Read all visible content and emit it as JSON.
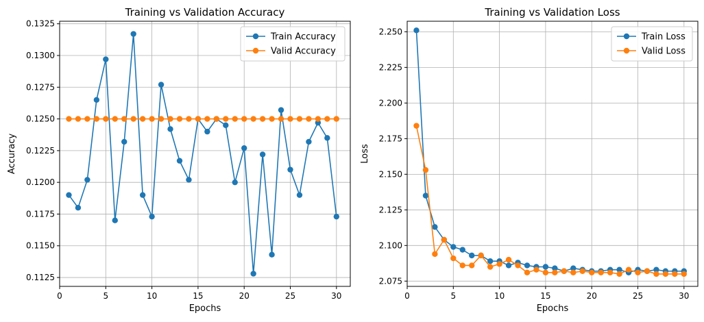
{
  "chart_data": [
    {
      "type": "line",
      "title": "Training vs Validation Accuracy",
      "xlabel": "Epochs",
      "ylabel": "Accuracy",
      "xlim": [
        0,
        31.5
      ],
      "ylim": [
        0.1118,
        0.1327
      ],
      "xticks": [
        0,
        5,
        10,
        15,
        20,
        25,
        30
      ],
      "yticks": [
        0.1125,
        0.115,
        0.1175,
        0.12,
        0.1225,
        0.125,
        0.1275,
        0.13,
        0.1325
      ],
      "ytick_labels": [
        "0.1125",
        "0.1150",
        "0.1175",
        "0.1200",
        "0.1225",
        "0.1250",
        "0.1275",
        "0.1300",
        "0.1325"
      ],
      "grid": true,
      "legend": "upper-right",
      "x": [
        1,
        2,
        3,
        4,
        5,
        6,
        7,
        8,
        9,
        10,
        11,
        12,
        13,
        14,
        15,
        16,
        17,
        18,
        19,
        20,
        21,
        22,
        23,
        24,
        25,
        26,
        27,
        28,
        29,
        30
      ],
      "series": [
        {
          "name": "Train Accuracy",
          "color": "#1f77b4",
          "values": [
            0.119,
            0.118,
            0.1202,
            0.1265,
            0.1297,
            0.117,
            0.1232,
            0.1317,
            0.119,
            0.1173,
            0.1277,
            0.1242,
            0.1217,
            0.1202,
            0.125,
            0.124,
            0.125,
            0.1245,
            0.12,
            0.1227,
            0.1128,
            0.1222,
            0.1143,
            0.1257,
            0.121,
            0.119,
            0.1232,
            0.1247,
            0.1235,
            0.1173
          ]
        },
        {
          "name": "Valid Accuracy",
          "color": "#ff7f0e",
          "values": [
            0.125,
            0.125,
            0.125,
            0.125,
            0.125,
            0.125,
            0.125,
            0.125,
            0.125,
            0.125,
            0.125,
            0.125,
            0.125,
            0.125,
            0.125,
            0.125,
            0.125,
            0.125,
            0.125,
            0.125,
            0.125,
            0.125,
            0.125,
            0.125,
            0.125,
            0.125,
            0.125,
            0.125,
            0.125,
            0.125
          ]
        }
      ]
    },
    {
      "type": "line",
      "title": "Training vs Validation Loss",
      "xlabel": "Epochs",
      "ylabel": "Loss",
      "xlim": [
        0,
        31.5
      ],
      "ylim": [
        2.0713,
        2.2574
      ],
      "xticks": [
        0,
        5,
        10,
        15,
        20,
        25,
        30
      ],
      "yticks": [
        2.075,
        2.1,
        2.125,
        2.15,
        2.175,
        2.2,
        2.225,
        2.25
      ],
      "ytick_labels": [
        "2.075",
        "2.100",
        "2.125",
        "2.150",
        "2.175",
        "2.200",
        "2.225",
        "2.250"
      ],
      "grid": true,
      "legend": "upper-right",
      "x": [
        1,
        2,
        3,
        4,
        5,
        6,
        7,
        8,
        9,
        10,
        11,
        12,
        13,
        14,
        15,
        16,
        17,
        18,
        19,
        20,
        21,
        22,
        23,
        24,
        25,
        26,
        27,
        28,
        29,
        30
      ],
      "series": [
        {
          "name": "Train Loss",
          "color": "#1f77b4",
          "values": [
            2.251,
            2.135,
            2.113,
            2.104,
            2.099,
            2.097,
            2.093,
            2.093,
            2.089,
            2.089,
            2.086,
            2.088,
            2.086,
            2.085,
            2.085,
            2.084,
            2.082,
            2.084,
            2.083,
            2.082,
            2.082,
            2.083,
            2.083,
            2.081,
            2.083,
            2.082,
            2.083,
            2.082,
            2.082,
            2.082
          ]
        },
        {
          "name": "Valid Loss",
          "color": "#ff7f0e",
          "values": [
            2.184,
            2.153,
            2.094,
            2.104,
            2.091,
            2.086,
            2.086,
            2.093,
            2.085,
            2.087,
            2.09,
            2.086,
            2.081,
            2.083,
            2.081,
            2.081,
            2.082,
            2.081,
            2.082,
            2.081,
            2.081,
            2.081,
            2.08,
            2.083,
            2.081,
            2.082,
            2.08,
            2.08,
            2.08,
            2.08
          ]
        }
      ]
    }
  ]
}
